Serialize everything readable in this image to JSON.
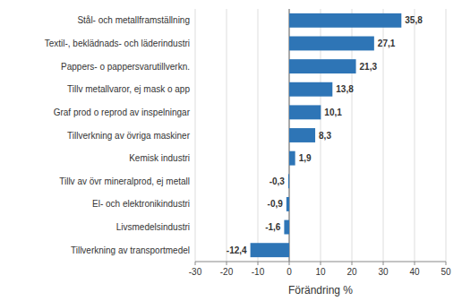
{
  "chart_data": {
    "type": "bar",
    "orientation": "horizontal",
    "categories": [
      "Tillverkning av transportmedel",
      "Livsmedelsindustri",
      "El- och elektronikindustri",
      "Tillv av övr mineralprod, ej metall",
      "Kemisk industri",
      "Tillverkning av övriga maskiner",
      "Graf prod o reprod av inspelningar",
      "Tillv metallvaror, ej mask o app",
      "Pappers- o pappersvarutillverkn.",
      "Textil-, beklädnads- och läderindustri",
      "Stål- och metallframställning"
    ],
    "values": [
      -12.4,
      -1.6,
      -0.9,
      -0.3,
      1.9,
      8.3,
      10.1,
      13.8,
      21.3,
      27.1,
      35.8
    ],
    "value_labels": [
      "-12,4",
      "-1,6",
      "-0,9",
      "-0,3",
      "1,9",
      "8,3",
      "10,1",
      "13,8",
      "21,3",
      "27,1",
      "35,8"
    ],
    "data_labels": true,
    "color": "#2E75B6",
    "xlabel": "Förändring %",
    "xlim": [
      -30,
      50
    ],
    "xticks": [
      -30,
      -20,
      -10,
      0,
      10,
      20,
      30,
      40,
      50
    ],
    "grid": true
  }
}
